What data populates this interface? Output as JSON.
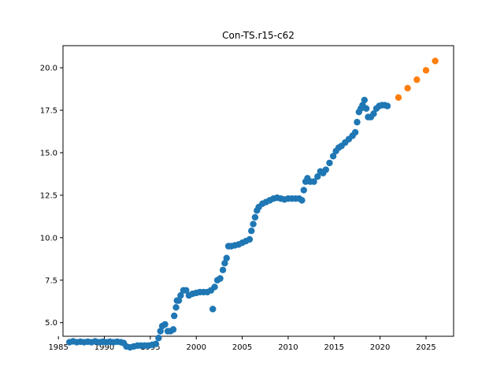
{
  "chart_data": {
    "type": "scatter",
    "title": "Con-TS.r15-c62",
    "xlabel": "",
    "ylabel": "",
    "xlim": [
      1985.5,
      2028
    ],
    "ylim": [
      4.2,
      21.3
    ],
    "grid": false,
    "legend": "none",
    "x_ticks": [
      1985,
      1990,
      1995,
      2000,
      2005,
      2010,
      2015,
      2020,
      2025
    ],
    "y_ticks": [
      5.0,
      7.5,
      10.0,
      12.5,
      15.0,
      17.5,
      20.0
    ],
    "x_tick_labels": [
      "1985",
      "1990",
      "1995",
      "2000",
      "2005",
      "2010",
      "2015",
      "2020",
      "2025"
    ],
    "y_tick_labels": [
      "5.0",
      "7.5",
      "10.0",
      "12.5",
      "15.0",
      "17.5",
      "20.0"
    ],
    "series": [
      {
        "color": "#1f77b4",
        "points": [
          [
            1986.2,
            3.85
          ],
          [
            1986.6,
            3.9
          ],
          [
            1987.0,
            3.85
          ],
          [
            1987.4,
            3.88
          ],
          [
            1987.8,
            3.85
          ],
          [
            1988.2,
            3.88
          ],
          [
            1988.6,
            3.85
          ],
          [
            1989.0,
            3.9
          ],
          [
            1989.4,
            3.85
          ],
          [
            1989.8,
            3.88
          ],
          [
            1990.2,
            3.85
          ],
          [
            1990.6,
            3.88
          ],
          [
            1991.0,
            3.85
          ],
          [
            1991.4,
            3.88
          ],
          [
            1991.8,
            3.85
          ],
          [
            1992.1,
            3.8
          ],
          [
            1992.4,
            3.6
          ],
          [
            1992.8,
            3.55
          ],
          [
            1993.2,
            3.6
          ],
          [
            1993.6,
            3.65
          ],
          [
            1994.0,
            3.65
          ],
          [
            1994.4,
            3.65
          ],
          [
            1994.8,
            3.65
          ],
          [
            1995.2,
            3.7
          ],
          [
            1995.6,
            3.75
          ],
          [
            1995.9,
            4.1
          ],
          [
            1996.1,
            4.5
          ],
          [
            1996.3,
            4.8
          ],
          [
            1996.6,
            4.9
          ],
          [
            1996.9,
            4.5
          ],
          [
            1997.2,
            4.5
          ],
          [
            1997.5,
            4.6
          ],
          [
            1997.6,
            5.4
          ],
          [
            1997.8,
            5.9
          ],
          [
            1997.9,
            6.3
          ],
          [
            1998.1,
            6.3
          ],
          [
            1998.3,
            6.6
          ],
          [
            1998.6,
            6.9
          ],
          [
            1998.9,
            6.9
          ],
          [
            1999.2,
            6.6
          ],
          [
            1999.6,
            6.7
          ],
          [
            2000.0,
            6.75
          ],
          [
            2000.4,
            6.8
          ],
          [
            2000.8,
            6.8
          ],
          [
            2001.2,
            6.8
          ],
          [
            2001.6,
            6.9
          ],
          [
            2001.8,
            5.8
          ],
          [
            2002.0,
            7.1
          ],
          [
            2002.3,
            7.5
          ],
          [
            2002.6,
            7.6
          ],
          [
            2002.9,
            8.1
          ],
          [
            2003.1,
            8.5
          ],
          [
            2003.3,
            8.8
          ],
          [
            2003.5,
            9.5
          ],
          [
            2003.8,
            9.5
          ],
          [
            2004.2,
            9.55
          ],
          [
            2004.6,
            9.6
          ],
          [
            2005.0,
            9.7
          ],
          [
            2005.4,
            9.8
          ],
          [
            2005.8,
            9.9
          ],
          [
            2006.0,
            10.4
          ],
          [
            2006.2,
            10.8
          ],
          [
            2006.4,
            11.2
          ],
          [
            2006.6,
            11.6
          ],
          [
            2006.8,
            11.8
          ],
          [
            2007.2,
            12.0
          ],
          [
            2007.6,
            12.1
          ],
          [
            2008.0,
            12.2
          ],
          [
            2008.4,
            12.3
          ],
          [
            2008.8,
            12.35
          ],
          [
            2009.2,
            12.3
          ],
          [
            2009.6,
            12.25
          ],
          [
            2010.0,
            12.3
          ],
          [
            2010.4,
            12.3
          ],
          [
            2010.8,
            12.3
          ],
          [
            2011.2,
            12.3
          ],
          [
            2011.5,
            12.2
          ],
          [
            2011.7,
            12.8
          ],
          [
            2011.9,
            13.3
          ],
          [
            2012.1,
            13.5
          ],
          [
            2012.4,
            13.3
          ],
          [
            2012.8,
            13.3
          ],
          [
            2013.2,
            13.6
          ],
          [
            2013.5,
            13.9
          ],
          [
            2013.8,
            13.8
          ],
          [
            2014.1,
            14.0
          ],
          [
            2014.5,
            14.4
          ],
          [
            2014.9,
            14.8
          ],
          [
            2015.2,
            15.1
          ],
          [
            2015.5,
            15.3
          ],
          [
            2015.8,
            15.4
          ],
          [
            2016.2,
            15.6
          ],
          [
            2016.6,
            15.8
          ],
          [
            2017.0,
            16.0
          ],
          [
            2017.3,
            16.2
          ],
          [
            2017.5,
            16.8
          ],
          [
            2017.7,
            17.4
          ],
          [
            2017.9,
            17.6
          ],
          [
            2018.1,
            17.8
          ],
          [
            2018.3,
            18.1
          ],
          [
            2018.5,
            17.6
          ],
          [
            2018.7,
            17.1
          ],
          [
            2019.0,
            17.1
          ],
          [
            2019.3,
            17.3
          ],
          [
            2019.6,
            17.6
          ],
          [
            2019.9,
            17.75
          ],
          [
            2020.2,
            17.8
          ],
          [
            2020.5,
            17.8
          ],
          [
            2020.8,
            17.75
          ]
        ]
      },
      {
        "color": "#ff7f0e",
        "points": [
          [
            2022.0,
            18.25
          ],
          [
            2023.0,
            18.8
          ],
          [
            2024.0,
            19.3
          ],
          [
            2025.0,
            19.85
          ],
          [
            2026.0,
            20.4
          ]
        ]
      }
    ]
  }
}
